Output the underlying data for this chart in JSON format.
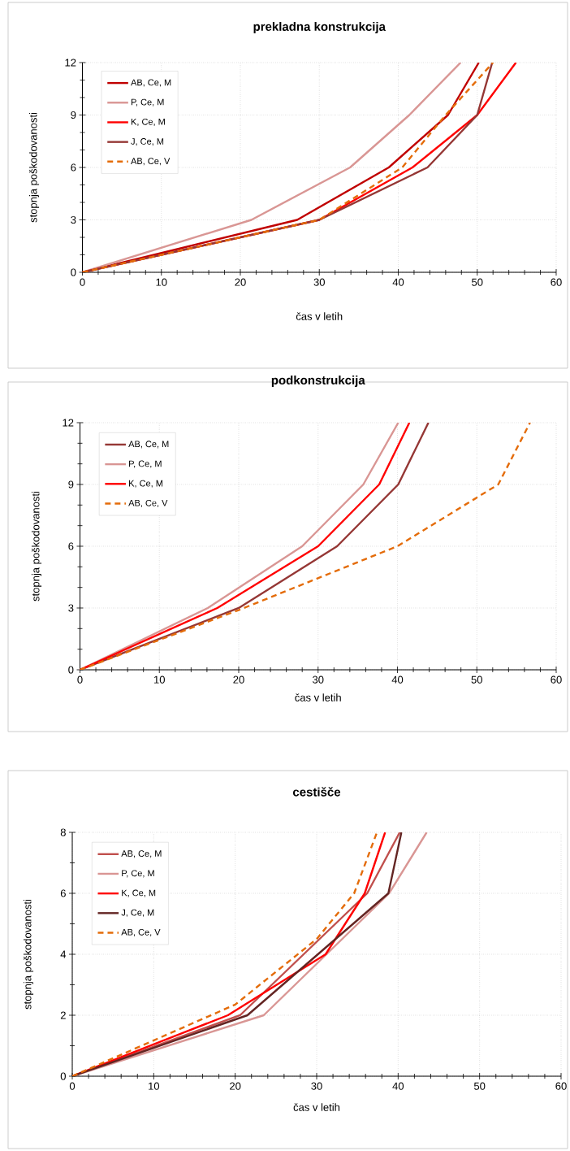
{
  "chart_data": [
    {
      "type": "line",
      "title": "prekladna konstrukcija",
      "xlabel": "čas v letih",
      "ylabel": "stopnja poškodovanosti",
      "xlim": [
        0,
        60
      ],
      "xticks": [
        0,
        10,
        20,
        30,
        40,
        50,
        60
      ],
      "ylim": [
        0,
        12
      ],
      "yticks": [
        0,
        3,
        6,
        9,
        12
      ],
      "grid": true,
      "legend": "top left",
      "marker": "none",
      "series": [
        {
          "name": "AB, Ce, M",
          "color": "#c00000",
          "x": [
            0,
            27.2,
            38.8,
            46.3,
            50.2
          ],
          "values": [
            0,
            3,
            6,
            9,
            12
          ]
        },
        {
          "name": "P, Ce, M",
          "color": "#d99694",
          "x": [
            0,
            21.4,
            33.9,
            41.4,
            47.9
          ],
          "values": [
            0,
            3,
            6,
            9,
            12
          ]
        },
        {
          "name": "K, Ce, M",
          "color": "#ff0000",
          "x": [
            0,
            30,
            41.8,
            50,
            54.9
          ],
          "values": [
            0,
            3,
            6,
            9,
            12
          ]
        },
        {
          "name": "J, Ce, M",
          "color": "#953735",
          "x": [
            0,
            30,
            43.7,
            50,
            51.9
          ],
          "values": [
            0,
            3,
            6,
            9,
            12
          ]
        },
        {
          "name": "AB, Ce, V",
          "color": "#e46c0a",
          "line_style": "dashed",
          "x": [
            0,
            30,
            40.5,
            46,
            52
          ],
          "values": [
            0,
            3,
            6,
            9,
            12
          ]
        }
      ]
    },
    {
      "type": "line",
      "title": "podkonstrukcija",
      "xlabel": "čas v letih",
      "ylabel": "stopnja poškodovanosti",
      "xlim": [
        0,
        60
      ],
      "xticks": [
        0,
        10,
        20,
        30,
        40,
        50,
        60
      ],
      "ylim": [
        0,
        12
      ],
      "yticks": [
        0,
        3,
        6,
        9,
        12
      ],
      "grid": true,
      "legend": "top left",
      "marker": "none",
      "series": [
        {
          "name": "AB, Ce, M",
          "color": "#953735",
          "x": [
            0,
            20,
            32.4,
            40.1,
            43.9
          ],
          "values": [
            0,
            3,
            6,
            9,
            12
          ]
        },
        {
          "name": "P, Ce, M",
          "color": "#d99694",
          "x": [
            0,
            16.1,
            28,
            35.7,
            40.1
          ],
          "values": [
            0,
            3,
            6,
            9,
            12
          ]
        },
        {
          "name": "K, Ce, M",
          "color": "#ff0000",
          "x": [
            0,
            17.3,
            30,
            37.7,
            41.5
          ],
          "values": [
            0,
            3,
            6,
            9,
            12
          ]
        },
        {
          "name": "AB, Ce, V",
          "color": "#e46c0a",
          "line_style": "dashed",
          "x": [
            0,
            20,
            40,
            52.7,
            56.7
          ],
          "values": [
            0,
            2.9,
            6,
            9,
            12
          ]
        }
      ]
    },
    {
      "type": "line",
      "title": "cestišče",
      "xlabel": "čas v letih",
      "ylabel": "stopnja poškodovanosti",
      "xlim": [
        0,
        60
      ],
      "xticks": [
        0,
        10,
        20,
        30,
        40,
        50,
        60
      ],
      "ylim": [
        0,
        8
      ],
      "yticks": [
        0,
        2,
        4,
        6,
        8
      ],
      "grid": true,
      "legend": "top left",
      "marker": "none",
      "series": [
        {
          "name": "AB, Ce, M",
          "color": "#c0504d",
          "x": [
            0,
            20.6,
            36.2,
            40.2
          ],
          "values": [
            0,
            2,
            6,
            8
          ]
        },
        {
          "name": "P, Ce, M",
          "color": "#d99694",
          "x": [
            0,
            23.5,
            38.9,
            43.5
          ],
          "values": [
            0,
            2,
            6,
            8
          ]
        },
        {
          "name": "K, Ce, M",
          "color": "#ff0000",
          "x": [
            0,
            19.1,
            31.1,
            35.9,
            38.4
          ],
          "values": [
            0,
            2,
            4,
            6,
            8
          ]
        },
        {
          "name": "J, Ce, M",
          "color": "#632523",
          "x": [
            0,
            21.5,
            38.8,
            40.4
          ],
          "values": [
            0,
            2,
            6,
            8
          ]
        },
        {
          "name": "AB, Ce, V",
          "color": "#e46c0a",
          "line_style": "dashed",
          "x": [
            0,
            20,
            30,
            34.6,
            37.4
          ],
          "values": [
            0,
            2.35,
            4.5,
            6,
            8
          ]
        }
      ]
    }
  ]
}
